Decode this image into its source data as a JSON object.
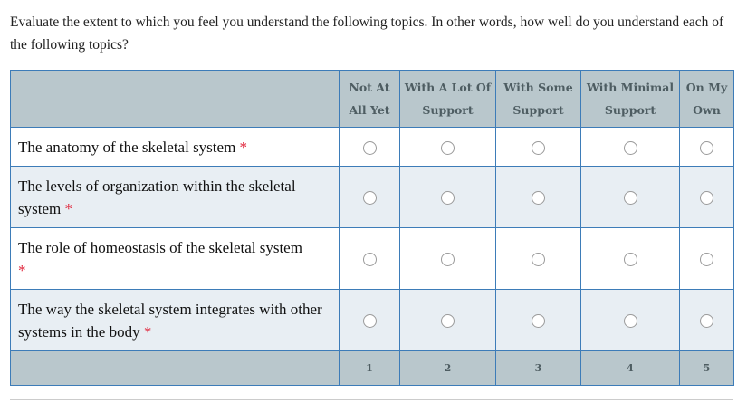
{
  "question": "Evaluate the extent to which you feel you understand the following topics. In other words, how well do you understand each of the following topics?",
  "columns": [
    "Not At All Yet",
    "With A Lot Of Support",
    "With Some Support",
    "With Minimal Support",
    "On My Own"
  ],
  "column_lines": [
    [
      "Not At",
      "All Yet"
    ],
    [
      "With A Lot Of",
      "Support"
    ],
    [
      "With Some",
      "Support"
    ],
    [
      "With Minimal",
      "Support"
    ],
    [
      "On My",
      "Own"
    ]
  ],
  "rows": [
    {
      "label": "The anatomy of the skeletal system",
      "required": "*"
    },
    {
      "label": "The levels of organization within the skeletal system",
      "required": "*"
    },
    {
      "label": "The role of homeostasis of the skeletal system",
      "required": "*"
    },
    {
      "label": "The way the skeletal system integrates with other systems in the body",
      "required": "*"
    }
  ],
  "scale": [
    "1",
    "2",
    "3",
    "4",
    "5"
  ],
  "colors": {
    "header_bg": "#b9c7cc",
    "border": "#3d7cb8",
    "alt_row": "#e8eef3",
    "required": "#e0243a"
  }
}
